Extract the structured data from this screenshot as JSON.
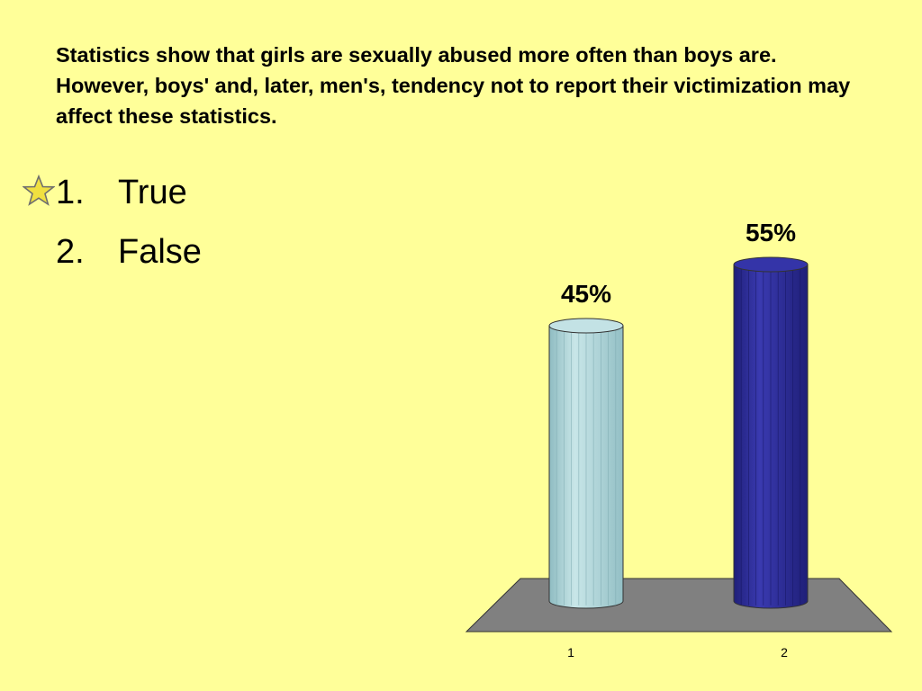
{
  "slide": {
    "background": "#ffff99",
    "question": "Statistics show that girls are sexually abused more often than boys are. However, boys' and, later, men's, tendency not to report their victimization may affect these statistics.",
    "answers": [
      {
        "number": "1.",
        "text": "True",
        "correct": true,
        "marker": "star-icon"
      },
      {
        "number": "2.",
        "text": "False",
        "correct": false
      }
    ]
  },
  "chart_data": {
    "type": "bar",
    "categories": [
      "1",
      "2"
    ],
    "values": [
      45,
      55
    ],
    "value_labels": [
      "45%",
      "55%"
    ],
    "unit": "%",
    "colors": [
      "#b0d8dc",
      "#2e2e9a"
    ],
    "floor_color": "#808080",
    "grid": false,
    "legend": "none"
  }
}
